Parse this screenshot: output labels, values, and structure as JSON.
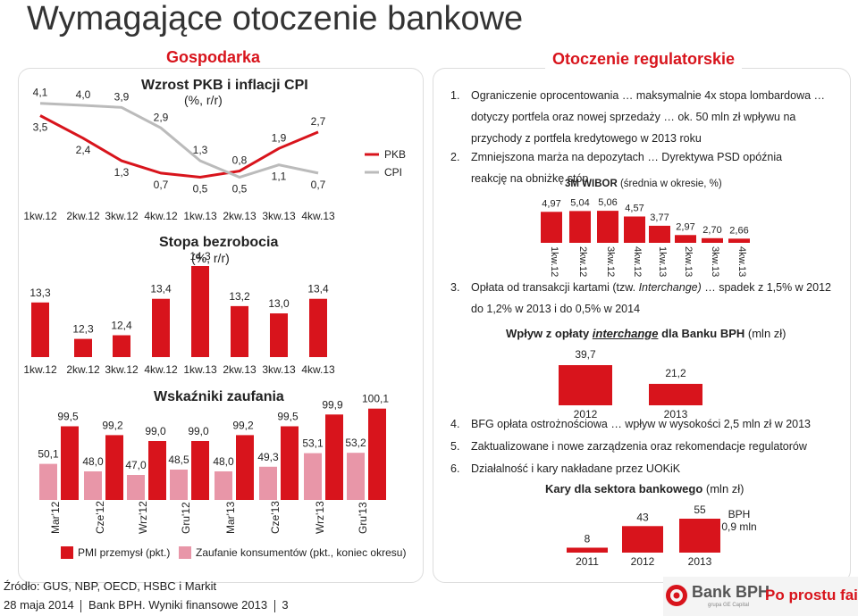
{
  "title": "Wymagające otoczenie bankowe",
  "sections": {
    "left": "Gospodarka",
    "right": "Otoczenie regulatorskie"
  },
  "colors": {
    "accent": "#d8141c",
    "pink": "#e896a8",
    "grey_line": "#bbbbbb"
  },
  "chart_data": [
    {
      "type": "line",
      "title": "Wzrost PKB i inflacji CPI",
      "subtitle": "(%, r/r)",
      "categories": [
        "1kw.12",
        "2kw.12",
        "3kw.12",
        "4kw.12",
        "1kw.13",
        "2kw.13",
        "3kw.13",
        "4kw.13"
      ],
      "series": [
        {
          "name": "PKB",
          "values": [
            3.5,
            2.4,
            1.3,
            0.7,
            0.5,
            0.8,
            1.9,
            2.7
          ],
          "labels": [
            "3,5",
            "2,4",
            "1,3",
            "0,7",
            "0,5",
            "0,8",
            "1,9",
            "2,7"
          ]
        },
        {
          "name": "CPI",
          "values": [
            4.1,
            4.0,
            3.9,
            2.9,
            1.3,
            0.5,
            1.1,
            0.7
          ],
          "labels": [
            "4,1",
            "4,0",
            "3,9",
            "2,9",
            "1,3",
            "0,5",
            "1,1",
            "0,7"
          ]
        }
      ]
    },
    {
      "type": "bar",
      "title": "Stopa bezrobocia",
      "subtitle": "(%, r/r)",
      "categories": [
        "1kw.12",
        "2kw.12",
        "3kw.12",
        "4kw.12",
        "1kw.13",
        "2kw.13",
        "3kw.13",
        "4kw.13"
      ],
      "values": [
        13.3,
        12.3,
        12.4,
        13.4,
        14.3,
        13.2,
        13.0,
        13.4
      ],
      "labels": [
        "13,3",
        "12,3",
        "12,4",
        "13,4",
        "14,3",
        "13,2",
        "13,0",
        "13,4"
      ]
    },
    {
      "type": "bar",
      "title": "Wskaźniki zaufania",
      "categories": [
        "Mar'12",
        "Cze'12",
        "Wrz'12",
        "Gru'12",
        "Mar'13",
        "Cze'13",
        "Wrz'13",
        "Gru'13"
      ],
      "series": [
        {
          "name": "PMI przemysł (pkt.)",
          "values": [
            50.1,
            48.0,
            47.0,
            48.5,
            48.0,
            49.3,
            53.1,
            53.2
          ],
          "labels": [
            "50,1",
            "48,0",
            "47,0",
            "48,5",
            "48,0",
            "49,3",
            "53,1",
            "53,2"
          ]
        },
        {
          "name": "Zaufanie konsumentów (pkt., koniec okresu)",
          "values": [
            99.5,
            99.2,
            99.0,
            99.0,
            99.2,
            99.5,
            99.9,
            100.1
          ],
          "labels": [
            "99,5",
            "99,2",
            "99,0",
            "99,0",
            "99,2",
            "99,5",
            "99,9",
            "100,1"
          ]
        }
      ]
    },
    {
      "type": "bar",
      "title": "3M WIBOR",
      "subtitle": "(średnia w okresie, %)",
      "categories": [
        "1kw.12",
        "2kw.12",
        "3kw.12",
        "4kw.12",
        "1kw.13",
        "2kw.13",
        "3kw.13",
        "4kw.13"
      ],
      "values": [
        4.97,
        5.04,
        5.06,
        4.57,
        3.77,
        2.97,
        2.7,
        2.66
      ],
      "labels": [
        "4,97",
        "5,04",
        "5,06",
        "4,57",
        "3,77",
        "2,97",
        "2,70",
        "2,66"
      ]
    },
    {
      "type": "bar",
      "title": "Wpływ z opłaty interchange dla Banku BPH",
      "unit": "(mln zł)",
      "categories": [
        "2012",
        "2013"
      ],
      "values": [
        39.7,
        21.2
      ],
      "labels": [
        "39,7",
        "21,2"
      ]
    },
    {
      "type": "bar",
      "title": "Kary dla sektora bankowego",
      "unit": "(mln zł)",
      "categories": [
        "2011",
        "2012",
        "2013"
      ],
      "values": [
        8,
        43,
        55
      ],
      "labels": [
        "8",
        "43",
        "55"
      ],
      "callout": "BPH\n0,9 mln"
    }
  ],
  "regulatory": {
    "item1_num": "1.",
    "item1": "Ograniczenie oprocentowania … maksymalnie 4x stopa lombardowa … dotyczy portfela oraz nowej sprzedaży … ok. 50 mln zł wpływu na przychody z portfela kredytowego w 2013 roku",
    "item2_num": "2.",
    "item2": "Zmniejszona marża na depozytach … Dyrektywa PSD opóźnia reakcję na obniżkę stóp",
    "item3_num": "3.",
    "item3_a": "Opłata od transakcji kartami (tzw. ",
    "item3_em": "Interchange)",
    "item3_b": " … spadek z 1,5% w 2012 do 1,2% w 2013 i do 0,5% w 2014",
    "item4_num": "4.",
    "item4": "BFG opłata ostrożnościowa … wpływ w wysokości 2,5 mln zł w 2013",
    "item5_num": "5.",
    "item5": "Zaktualizowane i nowe zarządzenia oraz rekomendacje regulatorów",
    "item6_num": "6.",
    "item6": "Działalność i kary nakładane przez UOKiK"
  },
  "interchange_title": {
    "a": "Wpływ z opłaty ",
    "em": "interchange",
    "b": " dla Banku BPH",
    "unit": " (mln zł)"
  },
  "kary_title": {
    "a": "Kary dla sektora bankowego",
    "unit": " (mln zł)"
  },
  "wibor_title": {
    "a": "3M WIBOR",
    "b": " (średnia w okresie, %)"
  },
  "footer": {
    "source": "Źródło: GUS, NBP, OECD, HSBC i Markit",
    "date": "28 maja 2014",
    "doc": "Bank BPH. Wyniki finansowe 2013",
    "page": "3"
  },
  "logo": {
    "bank": "Bank BPH",
    "sub": "grupa GE Capital",
    "slogan": "Po prostu fair"
  }
}
